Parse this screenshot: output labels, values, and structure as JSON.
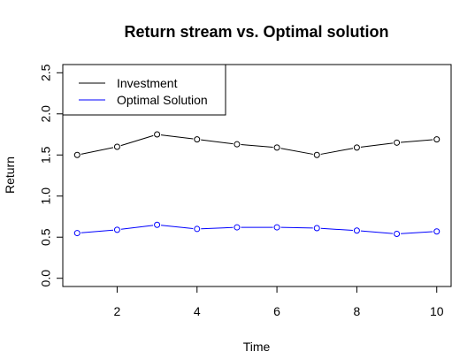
{
  "chart_data": {
    "type": "line",
    "title": "Return stream vs. Optimal solution",
    "xlabel": "Time",
    "ylabel": "Return",
    "x": [
      1,
      2,
      3,
      4,
      5,
      6,
      7,
      8,
      9,
      10
    ],
    "xlim": [
      0.64,
      10.36
    ],
    "ylim": [
      -0.1,
      2.6
    ],
    "xticks": [
      "2",
      "4",
      "6",
      "8",
      "10"
    ],
    "xtick_values": [
      2,
      4,
      6,
      8,
      10
    ],
    "yticks": [
      "0.0",
      "0.5",
      "1.0",
      "1.5",
      "2.0",
      "2.5"
    ],
    "ytick_values": [
      0.0,
      0.5,
      1.0,
      1.5,
      2.0,
      2.5
    ],
    "grid": false,
    "legend_position": "top-left",
    "series": [
      {
        "name": "Investment",
        "color": "#000000",
        "values": [
          1.5,
          1.6,
          1.75,
          1.69,
          1.63,
          1.59,
          1.5,
          1.59,
          1.65,
          1.69
        ]
      },
      {
        "name": "Optimal Solution",
        "color": "#0000ff",
        "values": [
          0.55,
          0.59,
          0.65,
          0.6,
          0.62,
          0.62,
          0.61,
          0.58,
          0.54,
          0.57
        ]
      }
    ]
  }
}
